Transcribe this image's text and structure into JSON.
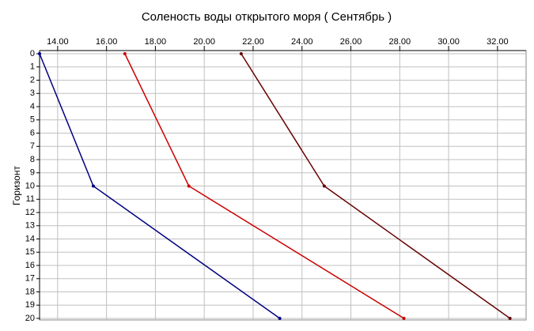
{
  "chart_data": {
    "type": "line",
    "title": "Соленость воды открытого моря    ( Сентябрь )",
    "y_label": "Горизонт",
    "xlim": [
      13.26,
      33.17
    ],
    "xticks": [
      {
        "value": 14,
        "label": "14.00"
      },
      {
        "value": 16,
        "label": "16.00"
      },
      {
        "value": 18,
        "label": "18.00"
      },
      {
        "value": 20,
        "label": "20.00"
      },
      {
        "value": 22,
        "label": "22.00"
      },
      {
        "value": 24,
        "label": "24.00"
      },
      {
        "value": 26,
        "label": "26.00"
      },
      {
        "value": 28,
        "label": "28.00"
      },
      {
        "value": 30,
        "label": "30.00"
      },
      {
        "value": 32,
        "label": "32.00"
      }
    ],
    "ylim": [
      0,
      20
    ],
    "y_inverted": true,
    "yticks": [
      0,
      1,
      2,
      3,
      4,
      5,
      6,
      7,
      8,
      9,
      10,
      11,
      12,
      13,
      14,
      15,
      16,
      17,
      18,
      19,
      20
    ],
    "grid": true,
    "series": [
      {
        "color": "#000080",
        "values": [
          13.26,
          15.46,
          23.09
        ],
        "y": [
          0,
          10,
          20
        ]
      },
      {
        "color": "#cc0000",
        "values": [
          16.75,
          19.37,
          28.17
        ],
        "y": [
          0,
          10,
          20
        ]
      },
      {
        "color": "#660000",
        "values": [
          21.51,
          24.91,
          32.51
        ],
        "y": [
          0,
          10,
          20
        ]
      }
    ]
  }
}
